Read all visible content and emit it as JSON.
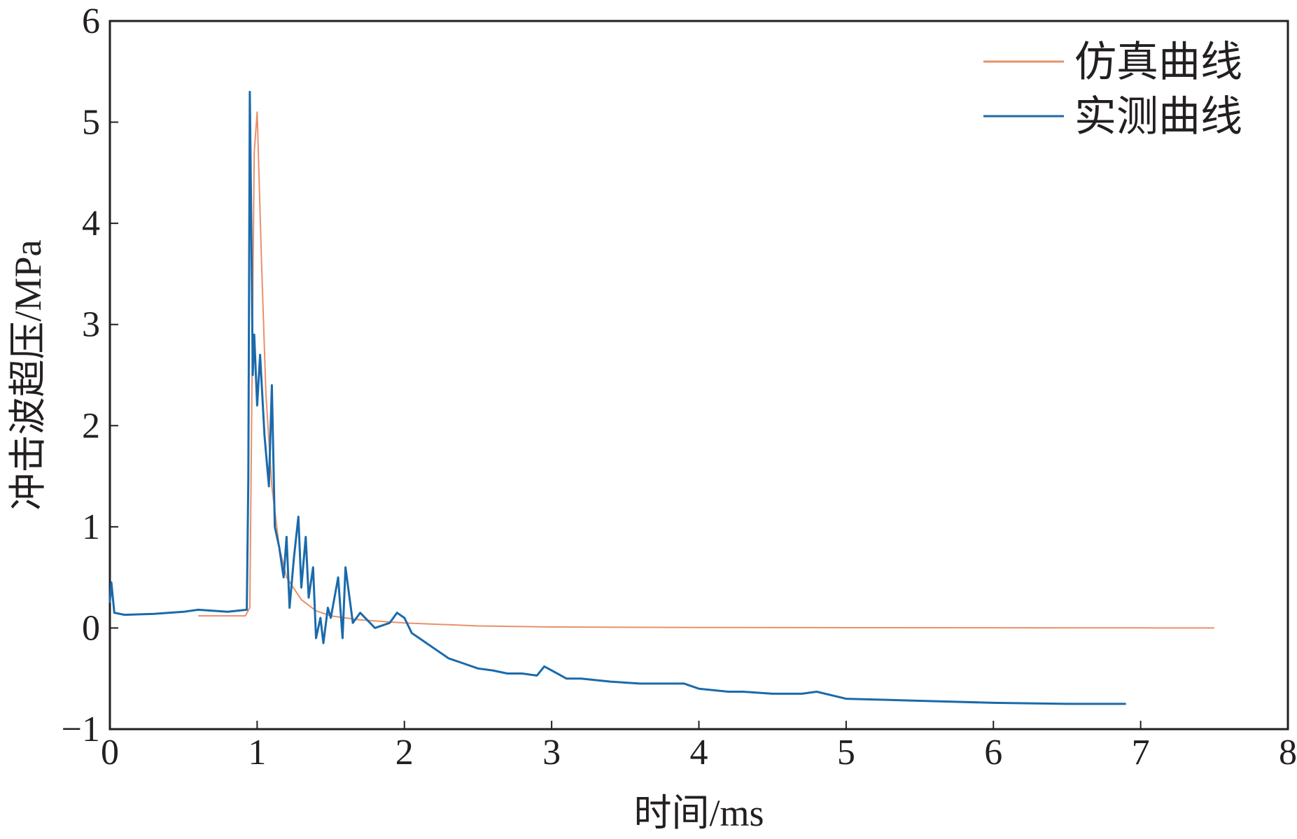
{
  "colors": {
    "simulated": "#e8906a",
    "measured": "#1a6aab",
    "axis": "#231f20"
  },
  "chart_data": {
    "type": "line",
    "title": "",
    "xlabel": "时间/ms",
    "ylabel": "冲击波超压/MPa",
    "xlim": [
      0,
      8
    ],
    "ylim": [
      -1,
      6
    ],
    "xticks": [
      "0",
      "1",
      "2",
      "3",
      "4",
      "5",
      "6",
      "7",
      "8"
    ],
    "yticks": [
      "−1",
      "0",
      "1",
      "2",
      "3",
      "4",
      "5",
      "6"
    ],
    "grid": false,
    "legend_position": "top-right",
    "series": [
      {
        "name": "仿真曲线",
        "color": "#e8906a",
        "x": [
          0.6,
          0.92,
          0.95,
          0.98,
          1.0,
          1.03,
          1.06,
          1.1,
          1.15,
          1.2,
          1.3,
          1.4,
          1.5,
          1.7,
          2.0,
          2.5,
          3.0,
          4.0,
          5.0,
          6.0,
          7.0,
          7.5
        ],
        "y": [
          0.12,
          0.12,
          0.2,
          4.7,
          5.1,
          3.6,
          2.3,
          1.4,
          0.8,
          0.5,
          0.28,
          0.17,
          0.12,
          0.08,
          0.05,
          0.02,
          0.01,
          0.005,
          0.003,
          0.002,
          0.001,
          0.0
        ]
      },
      {
        "name": "实测曲线",
        "color": "#1a6aab",
        "x": [
          0.0,
          0.01,
          0.03,
          0.1,
          0.3,
          0.5,
          0.6,
          0.8,
          0.93,
          0.94,
          0.95,
          0.96,
          0.97,
          0.98,
          1.0,
          1.02,
          1.05,
          1.08,
          1.1,
          1.12,
          1.15,
          1.18,
          1.2,
          1.22,
          1.25,
          1.28,
          1.3,
          1.33,
          1.35,
          1.38,
          1.4,
          1.43,
          1.45,
          1.48,
          1.5,
          1.55,
          1.58,
          1.6,
          1.65,
          1.7,
          1.8,
          1.9,
          1.95,
          2.0,
          2.05,
          2.1,
          2.2,
          2.3,
          2.4,
          2.5,
          2.6,
          2.7,
          2.8,
          2.9,
          2.95,
          3.0,
          3.1,
          3.2,
          3.4,
          3.6,
          3.8,
          3.9,
          4.0,
          4.2,
          4.3,
          4.5,
          4.7,
          4.8,
          5.0,
          5.5,
          6.0,
          6.5,
          6.9
        ],
        "y": [
          0.25,
          0.45,
          0.15,
          0.13,
          0.14,
          0.16,
          0.18,
          0.16,
          0.18,
          1.5,
          5.3,
          4.0,
          2.5,
          2.9,
          2.2,
          2.7,
          1.9,
          1.4,
          2.4,
          1.0,
          0.8,
          0.5,
          0.9,
          0.2,
          0.7,
          1.1,
          0.4,
          0.9,
          0.3,
          0.6,
          -0.1,
          0.1,
          -0.15,
          0.2,
          0.1,
          0.5,
          -0.1,
          0.6,
          0.05,
          0.15,
          0.0,
          0.05,
          0.15,
          0.1,
          -0.05,
          -0.1,
          -0.2,
          -0.3,
          -0.35,
          -0.4,
          -0.42,
          -0.45,
          -0.45,
          -0.47,
          -0.38,
          -0.42,
          -0.5,
          -0.5,
          -0.53,
          -0.55,
          -0.55,
          -0.55,
          -0.6,
          -0.63,
          -0.63,
          -0.65,
          -0.65,
          -0.63,
          -0.7,
          -0.72,
          -0.74,
          -0.75,
          -0.75
        ]
      }
    ]
  }
}
